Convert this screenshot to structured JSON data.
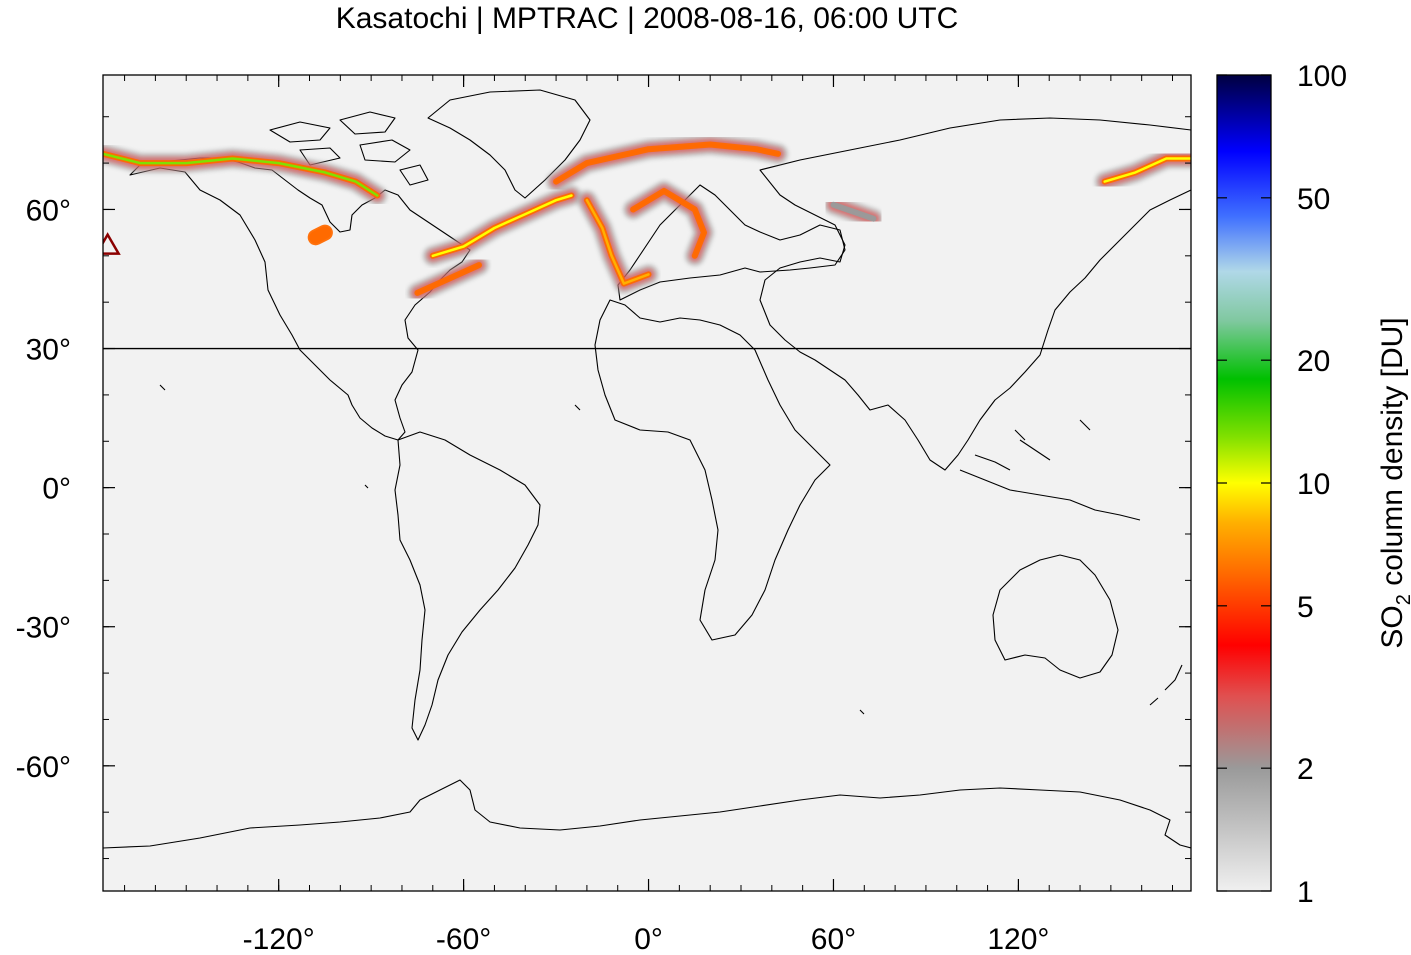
{
  "title": "Kasatochi | MPTRAC | 2008-08-16, 06:00 UTC",
  "map": {
    "projection": "equirectangular",
    "lon_range": [
      -177,
      176
    ],
    "lat_range": [
      -87,
      89
    ],
    "background_color": "#f2f2f2",
    "reference_parallel_deg": 30,
    "x_ticks": [
      {
        "value": -120,
        "label": "-120°"
      },
      {
        "value": -60,
        "label": "-60°"
      },
      {
        "value": 0,
        "label": "0°"
      },
      {
        "value": 60,
        "label": "60°"
      },
      {
        "value": 120,
        "label": "120°"
      }
    ],
    "y_ticks": [
      {
        "value": 60,
        "label": "60°"
      },
      {
        "value": 30,
        "label": "30°"
      },
      {
        "value": 0,
        "label": "0°"
      },
      {
        "value": -30,
        "label": "-30°"
      },
      {
        "value": -60,
        "label": "-60°"
      }
    ],
    "volcano": {
      "name": "Kasatochi",
      "lon": -175.5,
      "lat": 52.2,
      "marker": "triangle-outline",
      "color": "#8b0000"
    }
  },
  "colorbar": {
    "title_main": "SO",
    "title_sub": "2",
    "title_rest": " column density [DU]",
    "scale": "log",
    "range": [
      1,
      100
    ],
    "ticks": [
      {
        "value": 1,
        "label": "1"
      },
      {
        "value": 2,
        "label": "2"
      },
      {
        "value": 5,
        "label": "5"
      },
      {
        "value": 10,
        "label": "10"
      },
      {
        "value": 20,
        "label": "20"
      },
      {
        "value": 50,
        "label": "50"
      },
      {
        "value": 100,
        "label": "100"
      }
    ],
    "color_stops": [
      {
        "value": 1,
        "color": "#f0f0f0"
      },
      {
        "value": 1.5,
        "color": "#bdbdbd"
      },
      {
        "value": 2,
        "color": "#9a9a9a"
      },
      {
        "value": 3,
        "color": "#e05050"
      },
      {
        "value": 4,
        "color": "#ff0000"
      },
      {
        "value": 6,
        "color": "#ff6a00"
      },
      {
        "value": 8,
        "color": "#ffb000"
      },
      {
        "value": 10,
        "color": "#ffff00"
      },
      {
        "value": 13,
        "color": "#80e000"
      },
      {
        "value": 18,
        "color": "#00c000"
      },
      {
        "value": 25,
        "color": "#80c8a0"
      },
      {
        "value": 33,
        "color": "#b0d8e8"
      },
      {
        "value": 45,
        "color": "#4070ff"
      },
      {
        "value": 65,
        "color": "#0000ff"
      },
      {
        "value": 100,
        "color": "#000040"
      }
    ]
  },
  "chart_data": {
    "type": "heatmap",
    "variable": "SO2 column density",
    "units": "DU",
    "color_scale": "log",
    "color_range": [
      1,
      100
    ],
    "xlim": [
      -177,
      176
    ],
    "ylim": [
      -87,
      89
    ],
    "plume_segments": [
      {
        "name": "Alaska-Canada Arctic band",
        "points": [
          [
            -177,
            72
          ],
          [
            -165,
            70
          ],
          [
            -150,
            70
          ],
          [
            -135,
            71
          ],
          [
            -120,
            70
          ],
          [
            -105,
            68
          ],
          [
            -95,
            66
          ],
          [
            -88,
            63
          ]
        ],
        "peak_du": 12
      },
      {
        "name": "Central Canada blob",
        "points": [
          [
            -108,
            54
          ],
          [
            -105,
            55
          ]
        ],
        "peak_du": 6
      },
      {
        "name": "Hudson Bay-Labrador-Atlantic jet",
        "points": [
          [
            -70,
            50
          ],
          [
            -60,
            52
          ],
          [
            -50,
            56
          ],
          [
            -40,
            59
          ],
          [
            -30,
            62
          ],
          [
            -25,
            63
          ]
        ],
        "peak_du": 10
      },
      {
        "name": "Newfoundland band",
        "points": [
          [
            -75,
            42
          ],
          [
            -65,
            45
          ],
          [
            -55,
            48
          ]
        ],
        "peak_du": 5
      },
      {
        "name": "North Atlantic-Iceland-Scandinavia arc",
        "points": [
          [
            -30,
            66
          ],
          [
            -20,
            70
          ],
          [
            0,
            73
          ],
          [
            20,
            74
          ],
          [
            35,
            73
          ],
          [
            42,
            72
          ]
        ],
        "peak_du": 5
      },
      {
        "name": "Western Europe-Bay of Biscay",
        "points": [
          [
            -20,
            62
          ],
          [
            -15,
            56
          ],
          [
            -12,
            50
          ],
          [
            -8,
            44
          ],
          [
            0,
            46
          ]
        ],
        "peak_du": 8
      },
      {
        "name": "Scandinavia-Baltic loop",
        "points": [
          [
            -5,
            60
          ],
          [
            5,
            64
          ],
          [
            15,
            60
          ],
          [
            18,
            55
          ],
          [
            15,
            50
          ]
        ],
        "peak_du": 5
      },
      {
        "name": "Russian Far East-Kamchatka",
        "points": [
          [
            148,
            66
          ],
          [
            158,
            68
          ],
          [
            168,
            71
          ],
          [
            176,
            71
          ]
        ],
        "peak_du": 9
      },
      {
        "name": "Western Siberia wisps",
        "points": [
          [
            60,
            61
          ],
          [
            73,
            58
          ]
        ],
        "peak_du": 2
      }
    ]
  }
}
